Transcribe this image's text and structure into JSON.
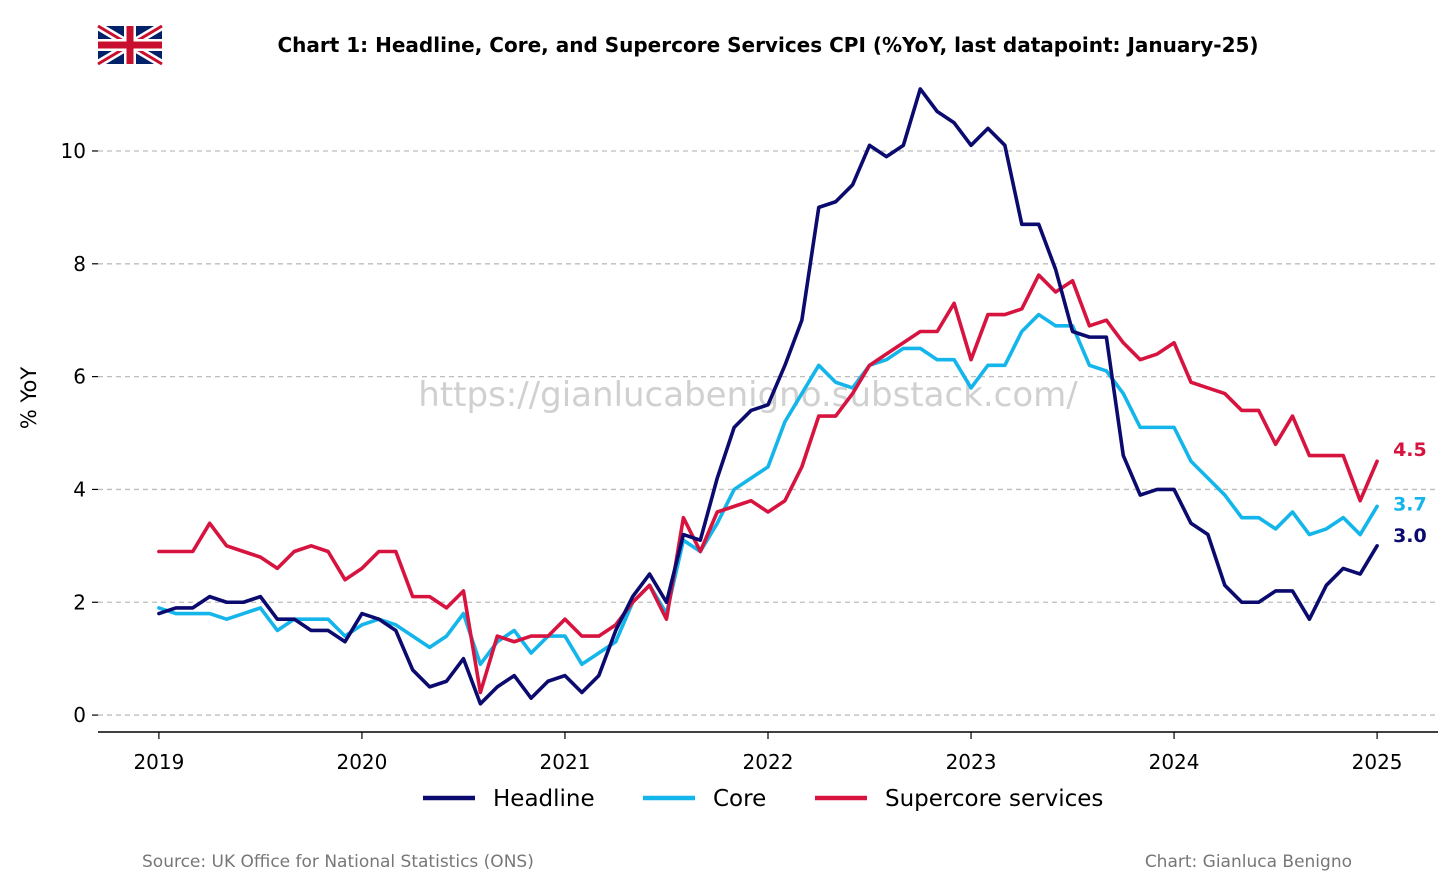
{
  "chart_data": {
    "type": "line",
    "title": "Chart 1: Headline, Core, and Supercore Services CPI (%YoY, last datapoint: January-25)",
    "xlabel": "",
    "ylabel": "% YoY",
    "xlim": [
      2018.7,
      2025.3
    ],
    "ylim": [
      -0.3,
      11.4
    ],
    "x_ticks": [
      "2019",
      "2020",
      "2021",
      "2022",
      "2023",
      "2024",
      "2025"
    ],
    "y_ticks": [
      "0",
      "2",
      "4",
      "6",
      "8",
      "10"
    ],
    "y_tick_values": [
      0,
      2,
      4,
      6,
      8,
      10
    ],
    "grid": "horizontal dashed",
    "legend_position": "bottom-center",
    "x_start": "2019-01",
    "x_end": "2025-01",
    "series": [
      {
        "name": "Headline",
        "color": "#0b0a6e",
        "end_label": "3.0",
        "values": [
          1.8,
          1.9,
          1.9,
          2.1,
          2.0,
          2.0,
          2.1,
          1.7,
          1.7,
          1.5,
          1.5,
          1.3,
          1.8,
          1.7,
          1.5,
          0.8,
          0.5,
          0.6,
          1.0,
          0.2,
          0.5,
          0.7,
          0.3,
          0.6,
          0.7,
          0.4,
          0.7,
          1.5,
          2.1,
          2.5,
          2.0,
          3.2,
          3.1,
          4.2,
          5.1,
          5.4,
          5.5,
          6.2,
          7.0,
          9.0,
          9.1,
          9.4,
          10.1,
          9.9,
          10.1,
          11.1,
          10.7,
          10.5,
          10.1,
          10.4,
          10.1,
          8.7,
          8.7,
          7.9,
          6.8,
          6.7,
          6.7,
          4.6,
          3.9,
          4.0,
          4.0,
          3.4,
          3.2,
          2.3,
          2.0,
          2.0,
          2.2,
          2.2,
          1.7,
          2.3,
          2.6,
          2.5,
          3.0
        ]
      },
      {
        "name": "Core",
        "color": "#13b5ea",
        "end_label": "3.7",
        "values": [
          1.9,
          1.8,
          1.8,
          1.8,
          1.7,
          1.8,
          1.9,
          1.5,
          1.7,
          1.7,
          1.7,
          1.4,
          1.6,
          1.7,
          1.6,
          1.4,
          1.2,
          1.4,
          1.8,
          0.9,
          1.3,
          1.5,
          1.1,
          1.4,
          1.4,
          0.9,
          1.1,
          1.3,
          2.0,
          2.3,
          1.8,
          3.1,
          2.9,
          3.4,
          4.0,
          4.2,
          4.4,
          5.2,
          5.7,
          6.2,
          5.9,
          5.8,
          6.2,
          6.3,
          6.5,
          6.5,
          6.3,
          6.3,
          5.8,
          6.2,
          6.2,
          6.8,
          7.1,
          6.9,
          6.9,
          6.2,
          6.1,
          5.7,
          5.1,
          5.1,
          5.1,
          4.5,
          4.2,
          3.9,
          3.5,
          3.5,
          3.3,
          3.6,
          3.2,
          3.3,
          3.5,
          3.2,
          3.7
        ]
      },
      {
        "name": "Supercore services",
        "color": "#d7143f",
        "end_label": "4.5",
        "values": [
          2.9,
          2.9,
          2.9,
          3.4,
          3.0,
          2.9,
          2.8,
          2.6,
          2.9,
          3.0,
          2.9,
          2.4,
          2.6,
          2.9,
          2.9,
          2.1,
          2.1,
          1.9,
          2.2,
          0.4,
          1.4,
          1.3,
          1.4,
          1.4,
          1.7,
          1.4,
          1.4,
          1.6,
          2.0,
          2.3,
          1.7,
          3.5,
          2.9,
          3.6,
          3.7,
          3.8,
          3.6,
          3.8,
          4.4,
          5.3,
          5.3,
          5.7,
          6.2,
          6.4,
          6.6,
          6.8,
          6.8,
          7.3,
          6.3,
          7.1,
          7.1,
          7.2,
          7.8,
          7.5,
          7.7,
          6.9,
          7.0,
          6.6,
          6.3,
          6.4,
          6.6,
          5.9,
          5.8,
          5.7,
          5.4,
          5.4,
          4.8,
          5.3,
          4.6,
          4.6,
          4.6,
          3.8,
          4.5
        ]
      }
    ]
  },
  "watermark": "https://gianlucabenigno.substack.com/",
  "footer": {
    "source": "Source: UK Office for National Statistics (ONS)",
    "credit": "Chart: Gianluca Benigno"
  },
  "flag": {
    "icon": "uk-flag-icon"
  }
}
